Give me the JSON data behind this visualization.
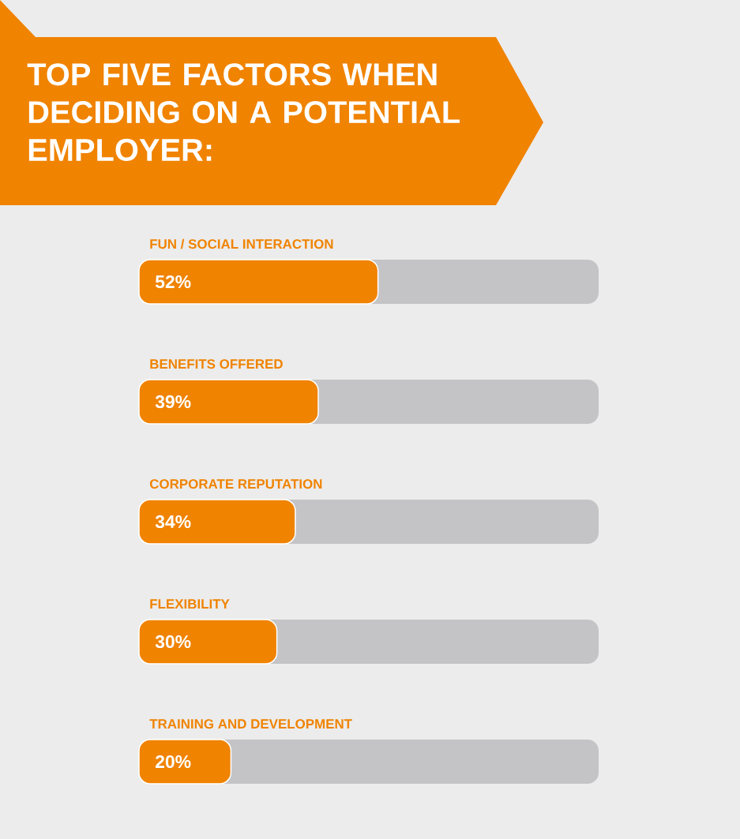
{
  "chart_data": {
    "type": "bar",
    "orientation": "horizontal",
    "title": "TOP FIVE FACTORS WHEN DECIDING ON A POTENTIAL EMPLOYER:",
    "categories": [
      "FUN / SOCIAL INTERACTION",
      "BENEFITS OFFERED",
      "CORPORATE REPUTATION",
      "FLEXIBILITY",
      "TRAINING AND DEVELOPMENT"
    ],
    "series": [
      {
        "color": "#f08300",
        "values": [
          52,
          39,
          34,
          30,
          20
        ],
        "value_labels": [
          "52%",
          "39%",
          "34%",
          "30%",
          "20%"
        ]
      }
    ],
    "xlim": [
      0,
      100
    ]
  }
}
